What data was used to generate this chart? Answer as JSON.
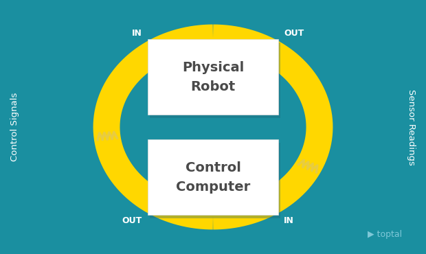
{
  "bg_color": "#1a8fa0",
  "yellow": "#FFD700",
  "white": "#FFFFFF",
  "box_text_color": "#4a4a4a",
  "label_color": "#FFFFFF",
  "inout_color": "#FFFFFF",
  "box1_label": "Physical\nRobot",
  "box2_label": "Control\nComputer",
  "left_label": "Control Signals",
  "right_label": "Sensor Readings",
  "top_left_tag": "IN",
  "top_right_tag": "OUT",
  "bot_left_tag": "OUT",
  "bot_right_tag": "IN",
  "toptal_color": "#7ec8d8",
  "fig_w": 6.2,
  "fig_h": 3.7,
  "dpi": 100
}
